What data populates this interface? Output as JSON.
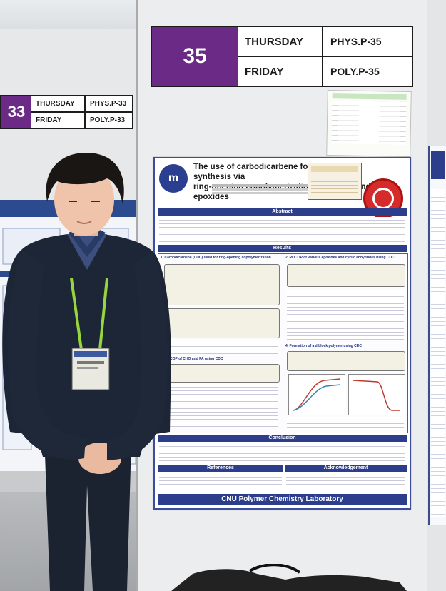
{
  "schedule_main": {
    "number": "35",
    "day1": "THURSDAY",
    "day2": "FRIDAY",
    "code1": "PHYS.P-35",
    "code2": "POLY.P-35"
  },
  "schedule_left": {
    "number": "33",
    "day1": "THURSDAY",
    "day2": "FRIDAY",
    "code1": "PHYS.P-33",
    "code2": "POLY.P-33"
  },
  "poster": {
    "title_line1": "The use of carbodicarbene for bio",
    "title_line1_end": "synthesis via",
    "title_line2": "ring-opening copolymerization of",
    "title_line2_end": "and epoxides",
    "sections": {
      "abstract": "Abstract",
      "results": "Results",
      "conclusion": "Conclusion",
      "references": "References",
      "acknowledgement": "Acknowledgement"
    },
    "subheads": {
      "s1": "1. Carbodicarbene (CDC) used for ring-opening copolymerization",
      "s2": "2. ROCOP of various epoxides and cyclic anhydrides using CDC",
      "s3": "3. ROCOP of CHO and PA using CDC",
      "s4": "4. Formation of a diblock polymer using CDC"
    },
    "lab_name": "CNU Polymer Chemistry Laboratory",
    "logo_glyph": "m"
  },
  "colors": {
    "accent_purple": "#6a2a85",
    "poster_blue": "#2c3d8c",
    "seal_red": "#d52b2b"
  }
}
